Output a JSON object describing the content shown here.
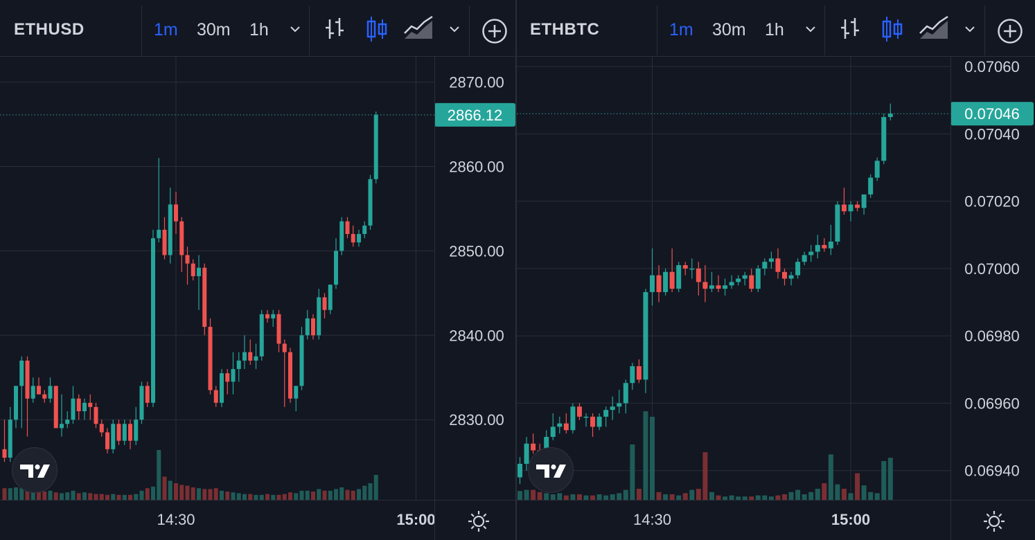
{
  "colors": {
    "background": "#131722",
    "grid": "#2a2e39",
    "up": "#26a69a",
    "down": "#ef5350",
    "volume_up": "#1f5c58",
    "volume_down": "#7a2f33",
    "active_timeframe": "#2962ff",
    "axis_text": "#d1d4dc"
  },
  "toolbar": {
    "timeframes": [
      "1m",
      "30m",
      "1h"
    ],
    "active_timeframe": "1m",
    "icons": [
      "chevron-down-icon",
      "bar-chart-icon",
      "candlestick-icon",
      "area-chart-icon",
      "chevron-down-icon",
      "add-circle-icon"
    ]
  },
  "chart_data": [
    {
      "type": "candlestick",
      "symbol": "ETHUSD",
      "last_price": "2866.12",
      "y_ticks": [
        "2870.00",
        "2860.00",
        "2850.00",
        "2840.00",
        "2830.00"
      ],
      "y_tick_values": [
        2870,
        2860,
        2850,
        2840,
        2830
      ],
      "ylim": [
        2820.5,
        2873
      ],
      "x_ticks": [
        "14:30",
        "15:00"
      ],
      "x_tick_indices": [
        30,
        72
      ],
      "x_tick_bold": [
        false,
        true
      ],
      "candles": [
        [
          2826.5,
          2830,
          2825,
          2825.5
        ],
        [
          2825.5,
          2831.5,
          2825,
          2830
        ],
        [
          2830,
          2834,
          2829,
          2834
        ],
        [
          2834,
          2837.5,
          2829,
          2837
        ],
        [
          2837,
          2837.5,
          2828,
          2832.5
        ],
        [
          2832.5,
          2835,
          2832,
          2834
        ],
        [
          2834,
          2835,
          2833,
          2833
        ],
        [
          2833,
          2833.5,
          2832,
          2832.5
        ],
        [
          2832.5,
          2835,
          2832,
          2834
        ],
        [
          2834,
          2834,
          2829,
          2829
        ],
        [
          2829,
          2833,
          2828,
          2829.5
        ],
        [
          2829.5,
          2831,
          2829,
          2830
        ],
        [
          2830,
          2834,
          2829.5,
          2832.5
        ],
        [
          2832.5,
          2833,
          2830,
          2831
        ],
        [
          2831,
          2832.5,
          2830,
          2832
        ],
        [
          2832,
          2833,
          2830,
          2831.5
        ],
        [
          2831.5,
          2832,
          2829,
          2829.5
        ],
        [
          2829.5,
          2830,
          2828,
          2828.5
        ],
        [
          2828.5,
          2829,
          2826,
          2826.5
        ],
        [
          2826.5,
          2830,
          2826,
          2829.5
        ],
        [
          2829.5,
          2830,
          2827,
          2827.5
        ],
        [
          2827.5,
          2830,
          2827,
          2829.5
        ],
        [
          2829.5,
          2830,
          2826.5,
          2827.5
        ],
        [
          2827.5,
          2831.5,
          2827,
          2830
        ],
        [
          2830,
          2834.5,
          2829.5,
          2834
        ],
        [
          2834,
          2834.5,
          2831.5,
          2832
        ],
        [
          2832,
          2852.5,
          2831.5,
          2851.5
        ],
        [
          2851.5,
          2861,
          2851,
          2852.5
        ],
        [
          2852.5,
          2854,
          2849,
          2849.5
        ],
        [
          2849.5,
          2857.5,
          2848.5,
          2855.5
        ],
        [
          2855.5,
          2857,
          2852,
          2853.5
        ],
        [
          2853.5,
          2854,
          2847.5,
          2849.5
        ],
        [
          2849.5,
          2850.5,
          2846,
          2848.5
        ],
        [
          2848.5,
          2849,
          2846.5,
          2847
        ],
        [
          2847,
          2849.5,
          2843,
          2848
        ],
        [
          2848,
          2848.5,
          2840,
          2841
        ],
        [
          2841,
          2842,
          2833,
          2833.5
        ],
        [
          2833.5,
          2834,
          2831.5,
          2832
        ],
        [
          2832,
          2836,
          2831.5,
          2835.5
        ],
        [
          2835.5,
          2836,
          2833,
          2834.5
        ],
        [
          2834.5,
          2838,
          2833,
          2836
        ],
        [
          2836,
          2838,
          2834.5,
          2837
        ],
        [
          2837,
          2840,
          2836,
          2838
        ],
        [
          2838,
          2839.5,
          2836.5,
          2837
        ],
        [
          2837,
          2839,
          2836,
          2837.5
        ],
        [
          2837.5,
          2843,
          2837,
          2842.5
        ],
        [
          2842.5,
          2843,
          2841.5,
          2842
        ],
        [
          2842,
          2843,
          2841,
          2842.5
        ],
        [
          2842.5,
          2843,
          2838,
          2839
        ],
        [
          2839,
          2839.5,
          2831.5,
          2838
        ],
        [
          2838,
          2838.5,
          2832,
          2832.5
        ],
        [
          2832.5,
          2834,
          2831,
          2834
        ],
        [
          2834,
          2841,
          2833.5,
          2840
        ],
        [
          2840,
          2843,
          2839.5,
          2842
        ],
        [
          2842,
          2842.5,
          2839.5,
          2840
        ],
        [
          2840,
          2845.5,
          2839.5,
          2844.5
        ],
        [
          2844.5,
          2845,
          2842,
          2843
        ],
        [
          2843,
          2846,
          2842.5,
          2846
        ],
        [
          2846,
          2851.5,
          2845.5,
          2850
        ],
        [
          2850,
          2854,
          2849.5,
          2853.5
        ],
        [
          2853.5,
          2854,
          2851.5,
          2852
        ],
        [
          2852,
          2853,
          2850.5,
          2851
        ],
        [
          2851,
          2852.5,
          2850.5,
          2852
        ],
        [
          2852,
          2853.5,
          2851.5,
          2853
        ],
        [
          2853,
          2859,
          2852.5,
          2858.5
        ],
        [
          2858.5,
          2866.5,
          2858,
          2866.12
        ]
      ],
      "volume_ylim": [
        0,
        200
      ],
      "volumes": [
        28,
        28,
        30,
        28,
        30,
        22,
        22,
        20,
        22,
        18,
        16,
        18,
        22,
        16,
        18,
        16,
        14,
        14,
        12,
        14,
        12,
        12,
        12,
        14,
        22,
        28,
        32,
        120,
        56,
        46,
        40,
        36,
        34,
        30,
        28,
        26,
        26,
        28,
        22,
        20,
        18,
        16,
        14,
        14,
        12,
        12,
        14,
        12,
        12,
        14,
        18,
        16,
        22,
        22,
        20,
        26,
        22,
        22,
        26,
        30,
        24,
        22,
        26,
        34,
        40,
        60
      ]
    },
    {
      "type": "candlestick",
      "symbol": "ETHBTC",
      "last_price": "0.07046",
      "y_ticks": [
        "0.07060",
        "0.07040",
        "0.07020",
        "0.07000",
        "0.06980",
        "0.06960",
        "0.06940"
      ],
      "y_tick_values": [
        0.0706,
        0.0704,
        0.0702,
        0.07,
        0.0698,
        0.0696,
        0.0694
      ],
      "ylim": [
        0.069313,
        0.070629
      ],
      "x_ticks": [
        "14:30",
        "15:00"
      ],
      "x_tick_indices": [
        20,
        50
      ],
      "x_tick_bold": [
        false,
        true
      ],
      "candles": [
        [
          0.06938,
          0.06944,
          0.06936,
          0.06942
        ],
        [
          0.06942,
          0.0695,
          0.0694,
          0.06948
        ],
        [
          0.06948,
          0.06951,
          0.06945,
          0.06946
        ],
        [
          0.06946,
          0.06948,
          0.0694,
          0.06944
        ],
        [
          0.06944,
          0.06952,
          0.06943,
          0.0695
        ],
        [
          0.0695,
          0.06957,
          0.06949,
          0.06953
        ],
        [
          0.06953,
          0.06956,
          0.06951,
          0.06954
        ],
        [
          0.06954,
          0.06957,
          0.06951,
          0.06952
        ],
        [
          0.06952,
          0.0696,
          0.06951,
          0.06959
        ],
        [
          0.06959,
          0.0696,
          0.06955,
          0.06956
        ],
        [
          0.06956,
          0.06957,
          0.06953,
          0.06956
        ],
        [
          0.06956,
          0.06957,
          0.0695,
          0.06953
        ],
        [
          0.06953,
          0.06957,
          0.06952,
          0.06956
        ],
        [
          0.06956,
          0.06959,
          0.06953,
          0.06958
        ],
        [
          0.06958,
          0.06962,
          0.06955,
          0.06959
        ],
        [
          0.06959,
          0.06964,
          0.06957,
          0.0696
        ],
        [
          0.0696,
          0.06967,
          0.06957,
          0.06966
        ],
        [
          0.06966,
          0.06972,
          0.06964,
          0.06971
        ],
        [
          0.06971,
          0.06973,
          0.06966,
          0.06967
        ],
        [
          0.06967,
          0.06994,
          0.06963,
          0.06993
        ],
        [
          0.06993,
          0.07006,
          0.06989,
          0.06998
        ],
        [
          0.06998,
          0.07001,
          0.0699,
          0.06993
        ],
        [
          0.06993,
          0.07,
          0.06992,
          0.06999
        ],
        [
          0.06999,
          0.07006,
          0.06993,
          0.06994
        ],
        [
          0.06994,
          0.07002,
          0.06993,
          0.07001
        ],
        [
          0.07001,
          0.07002,
          0.06998,
          0.07
        ],
        [
          0.07,
          0.07003,
          0.06997,
          0.07
        ],
        [
          0.07,
          0.07002,
          0.06992,
          0.06996
        ],
        [
          0.06996,
          0.07001,
          0.0699,
          0.06994
        ],
        [
          0.06994,
          0.06999,
          0.06993,
          0.06995
        ],
        [
          0.06995,
          0.06998,
          0.06993,
          0.06994
        ],
        [
          0.06994,
          0.06997,
          0.06992,
          0.06995
        ],
        [
          0.06995,
          0.06998,
          0.06994,
          0.06996
        ],
        [
          0.06996,
          0.06998,
          0.06995,
          0.06997
        ],
        [
          0.06997,
          0.06999,
          0.06995,
          0.06998
        ],
        [
          0.06998,
          0.07,
          0.06993,
          0.06994
        ],
        [
          0.06994,
          0.07001,
          0.06993,
          0.07
        ],
        [
          0.07,
          0.07003,
          0.06998,
          0.07002
        ],
        [
          0.07002,
          0.07005,
          0.07,
          0.07003
        ],
        [
          0.07003,
          0.07006,
          0.06997,
          0.06999
        ],
        [
          0.06999,
          0.07,
          0.06995,
          0.06997
        ],
        [
          0.06997,
          0.06999,
          0.06995,
          0.06998
        ],
        [
          0.06998,
          0.07003,
          0.06997,
          0.07002
        ],
        [
          0.07002,
          0.07005,
          0.07001,
          0.07004
        ],
        [
          0.07004,
          0.07007,
          0.07002,
          0.07005
        ],
        [
          0.07005,
          0.0701,
          0.07003,
          0.07007
        ],
        [
          0.07007,
          0.07009,
          0.07005,
          0.07006
        ],
        [
          0.07006,
          0.07013,
          0.07004,
          0.07008
        ],
        [
          0.07008,
          0.0702,
          0.07007,
          0.07019
        ],
        [
          0.07019,
          0.07024,
          0.07016,
          0.07017
        ],
        [
          0.07017,
          0.0702,
          0.07014,
          0.07019
        ],
        [
          0.07019,
          0.0702,
          0.07017,
          0.07018
        ],
        [
          0.07018,
          0.07022,
          0.07016,
          0.07022
        ],
        [
          0.07022,
          0.07028,
          0.07021,
          0.07027
        ],
        [
          0.07027,
          0.07033,
          0.07026,
          0.07032
        ],
        [
          0.07032,
          0.07046,
          0.07031,
          0.07045
        ],
        [
          0.07045,
          0.07049,
          0.07044,
          0.07046
        ]
      ],
      "volume_ylim": [
        0,
        200
      ],
      "volumes": [
        16,
        18,
        18,
        14,
        12,
        10,
        12,
        8,
        10,
        10,
        8,
        8,
        10,
        8,
        10,
        12,
        18,
        100,
        20,
        160,
        150,
        14,
        10,
        10,
        8,
        12,
        18,
        20,
        86,
        14,
        8,
        6,
        8,
        6,
        6,
        6,
        8,
        8,
        6,
        8,
        10,
        14,
        18,
        10,
        14,
        20,
        30,
        82,
        28,
        20,
        12,
        48,
        26,
        14,
        12,
        70,
        76
      ]
    }
  ]
}
